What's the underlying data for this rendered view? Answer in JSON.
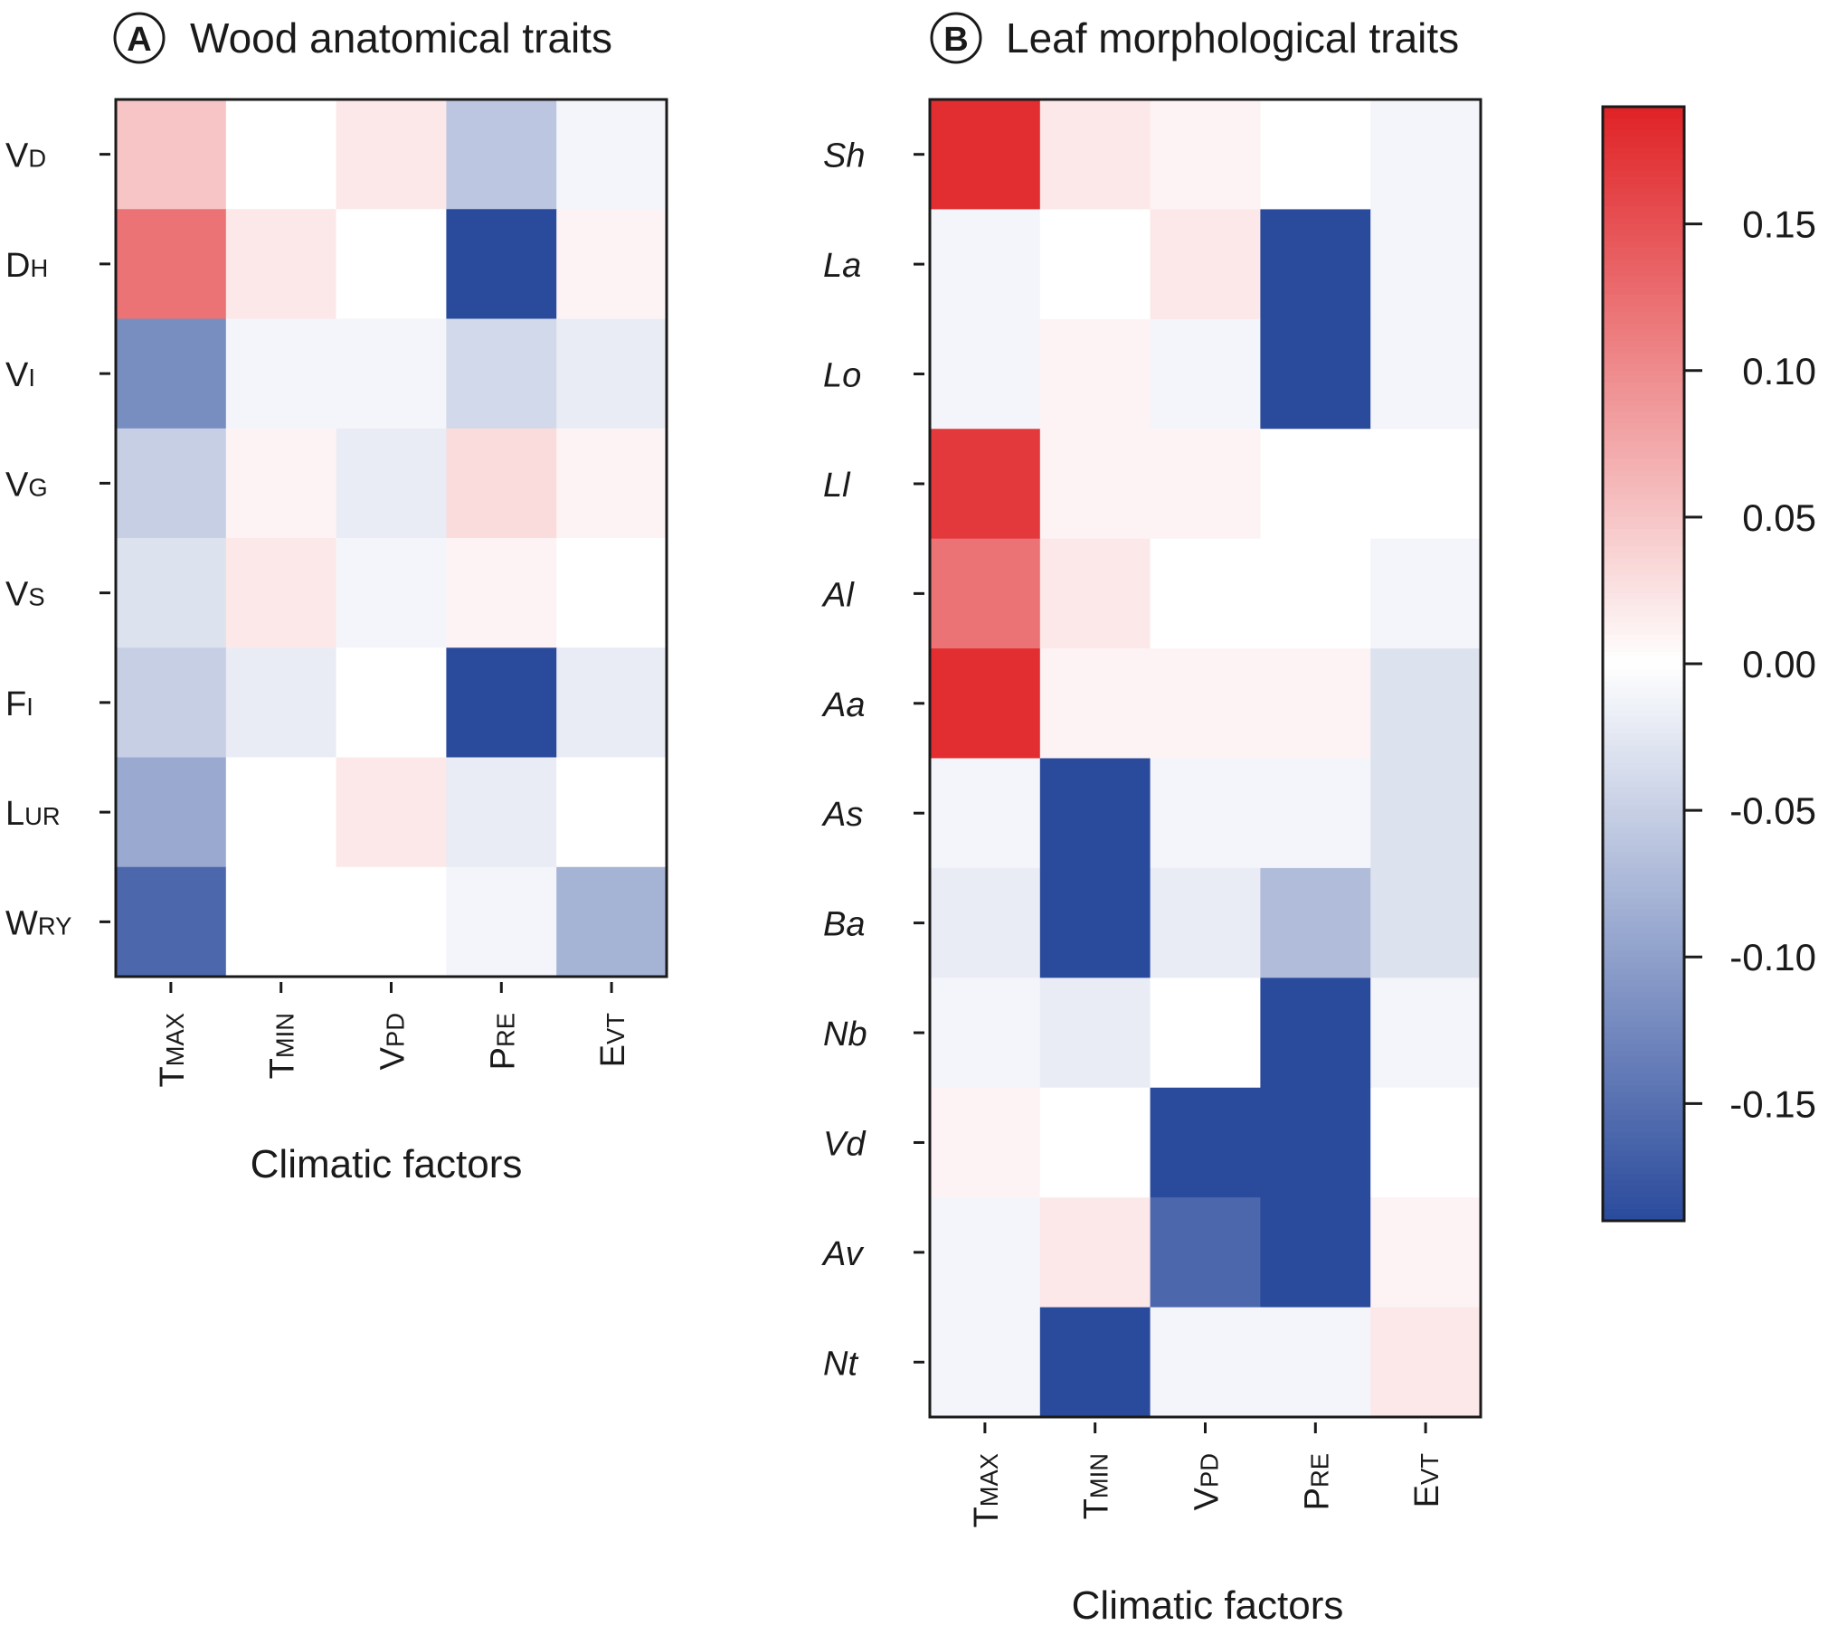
{
  "colorbar": {
    "min": -0.19,
    "max": 0.19,
    "ticks": [
      0.15,
      0.1,
      0.05,
      0.0,
      -0.05,
      -0.1,
      -0.15
    ],
    "tick_labels": [
      "0.15",
      "0.10",
      "0.05",
      "0.00",
      "-0.05",
      "-0.10",
      "-0.15"
    ],
    "colors": {
      "negative": "#2a4a9c",
      "zero": "#ffffff",
      "positive": "#e02226"
    }
  },
  "chart_data": [
    {
      "type": "heatmap",
      "badge": "A",
      "title": "Wood anatomical traits",
      "xlabel": "Climatic factors",
      "x_categories": [
        {
          "cap": "T",
          "small": "MAX"
        },
        {
          "cap": "T",
          "small": "MIN"
        },
        {
          "cap": "V",
          "small": "PD"
        },
        {
          "cap": "P",
          "small": "RE"
        },
        {
          "cap": "E",
          "small": "VT"
        }
      ],
      "y_categories": [
        {
          "cap": "V",
          "small": "D",
          "italic": false
        },
        {
          "cap": "D",
          "small": "H",
          "italic": false
        },
        {
          "cap": "V",
          "small": "I",
          "italic": false
        },
        {
          "cap": "V",
          "small": "G",
          "italic": false
        },
        {
          "cap": "V",
          "small": "S",
          "italic": false
        },
        {
          "cap": "F",
          "small": "I",
          "italic": false
        },
        {
          "cap": "L",
          "small": "UR",
          "italic": false
        },
        {
          "cap": "W",
          "small": "RY",
          "italic": false
        }
      ],
      "values": [
        [
          0.05,
          0.0,
          0.02,
          -0.06,
          -0.01
        ],
        [
          0.12,
          0.02,
          0.0,
          -0.19,
          0.01
        ],
        [
          -0.12,
          -0.01,
          -0.01,
          -0.04,
          -0.02
        ],
        [
          -0.05,
          0.01,
          -0.02,
          0.03,
          0.01
        ],
        [
          -0.03,
          0.02,
          -0.01,
          0.01,
          0.0
        ],
        [
          -0.05,
          -0.02,
          0.0,
          -0.19,
          -0.02
        ],
        [
          -0.09,
          0.0,
          0.02,
          -0.02,
          0.0
        ],
        [
          -0.16,
          0.0,
          0.0,
          -0.01,
          -0.08
        ]
      ]
    },
    {
      "type": "heatmap",
      "badge": "B",
      "title": "Leaf morphological traits",
      "xlabel": "Climatic factors",
      "x_categories": [
        {
          "cap": "T",
          "small": "MAX"
        },
        {
          "cap": "T",
          "small": "MIN"
        },
        {
          "cap": "V",
          "small": "PD"
        },
        {
          "cap": "P",
          "small": "RE"
        },
        {
          "cap": "E",
          "small": "VT"
        }
      ],
      "y_categories": [
        {
          "cap": "Sh",
          "small": "",
          "italic": true
        },
        {
          "cap": "La",
          "small": "",
          "italic": true
        },
        {
          "cap": "Lo",
          "small": "",
          "italic": true
        },
        {
          "cap": "Ll",
          "small": "",
          "italic": true
        },
        {
          "cap": "Al",
          "small": "",
          "italic": true
        },
        {
          "cap": "Aa",
          "small": "",
          "italic": true
        },
        {
          "cap": "As",
          "small": "",
          "italic": true
        },
        {
          "cap": "Ba",
          "small": "",
          "italic": true
        },
        {
          "cap": "Nb",
          "small": "",
          "italic": true
        },
        {
          "cap": "Vd",
          "small": "",
          "italic": true
        },
        {
          "cap": "Av",
          "small": "",
          "italic": true
        },
        {
          "cap": "Nt",
          "small": "",
          "italic": true
        }
      ],
      "values": [
        [
          0.18,
          0.02,
          0.01,
          0.0,
          -0.01
        ],
        [
          -0.01,
          0.0,
          0.02,
          -0.19,
          -0.01
        ],
        [
          -0.01,
          0.01,
          -0.01,
          -0.19,
          -0.01
        ],
        [
          0.17,
          0.01,
          0.01,
          0.0,
          0.0
        ],
        [
          0.12,
          0.02,
          0.0,
          0.0,
          -0.01
        ],
        [
          0.18,
          0.01,
          0.01,
          0.01,
          -0.03
        ],
        [
          -0.01,
          -0.19,
          -0.01,
          -0.01,
          -0.03
        ],
        [
          -0.02,
          -0.19,
          -0.02,
          -0.07,
          -0.03
        ],
        [
          -0.01,
          -0.02,
          0.0,
          -0.19,
          -0.01
        ],
        [
          0.01,
          0.0,
          -0.19,
          -0.19,
          0.0
        ],
        [
          -0.01,
          0.02,
          -0.16,
          -0.19,
          0.01
        ],
        [
          -0.01,
          -0.19,
          -0.01,
          -0.01,
          0.02
        ]
      ]
    }
  ]
}
